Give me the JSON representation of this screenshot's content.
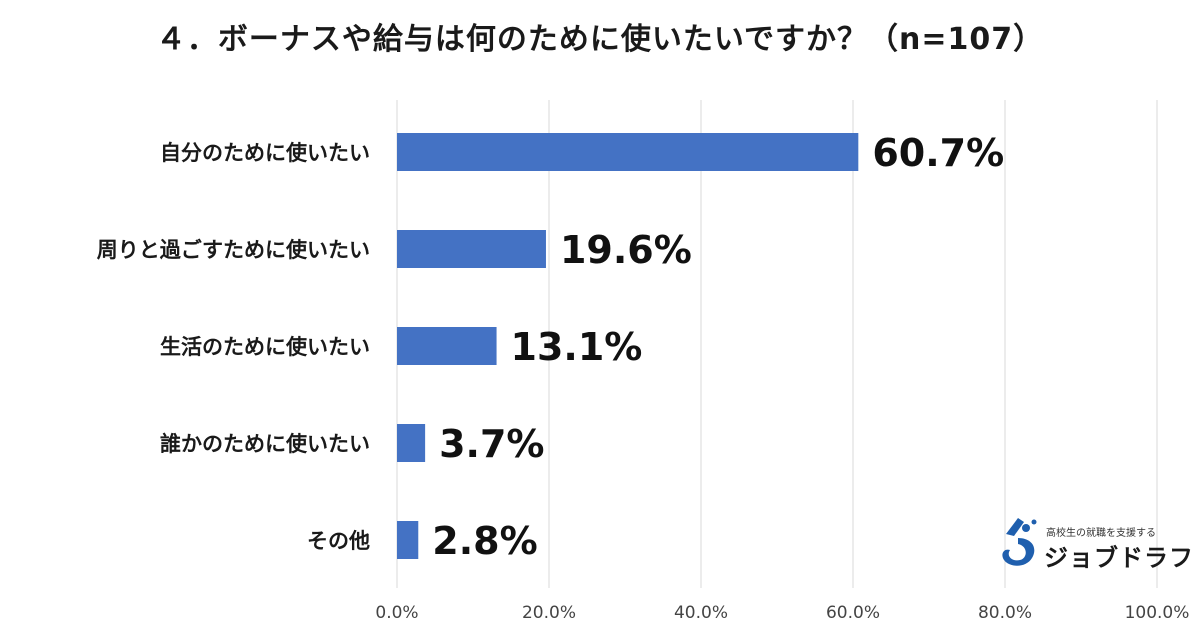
{
  "title": "４．ボーナスや給与は何のために使いたいですか？（n=107）",
  "chart_data": {
    "type": "bar",
    "orientation": "horizontal",
    "title": "４．ボーナスや給与は何のために使いたいですか？（n=107）",
    "categories": [
      "自分のために使いたい",
      "周りと過ごすために使いたい",
      "生活のために使いたい",
      "誰かのために使いたい",
      "その他"
    ],
    "values": [
      60.7,
      19.6,
      13.1,
      3.7,
      2.8
    ],
    "value_labels": [
      "60.7%",
      "19.6%",
      "13.1%",
      "3.7%",
      "2.8%"
    ],
    "xlim": [
      0,
      100
    ],
    "x_ticks": [
      "0.0%",
      "20.0%",
      "40.0%",
      "60.0%",
      "80.0%",
      "100.0%"
    ],
    "grid": true,
    "bar_color": "#4472c4"
  },
  "logo": {
    "subtitle": "高校生の就職を支援する",
    "name": "ジョブドラフト",
    "color": "#1f5fae"
  }
}
